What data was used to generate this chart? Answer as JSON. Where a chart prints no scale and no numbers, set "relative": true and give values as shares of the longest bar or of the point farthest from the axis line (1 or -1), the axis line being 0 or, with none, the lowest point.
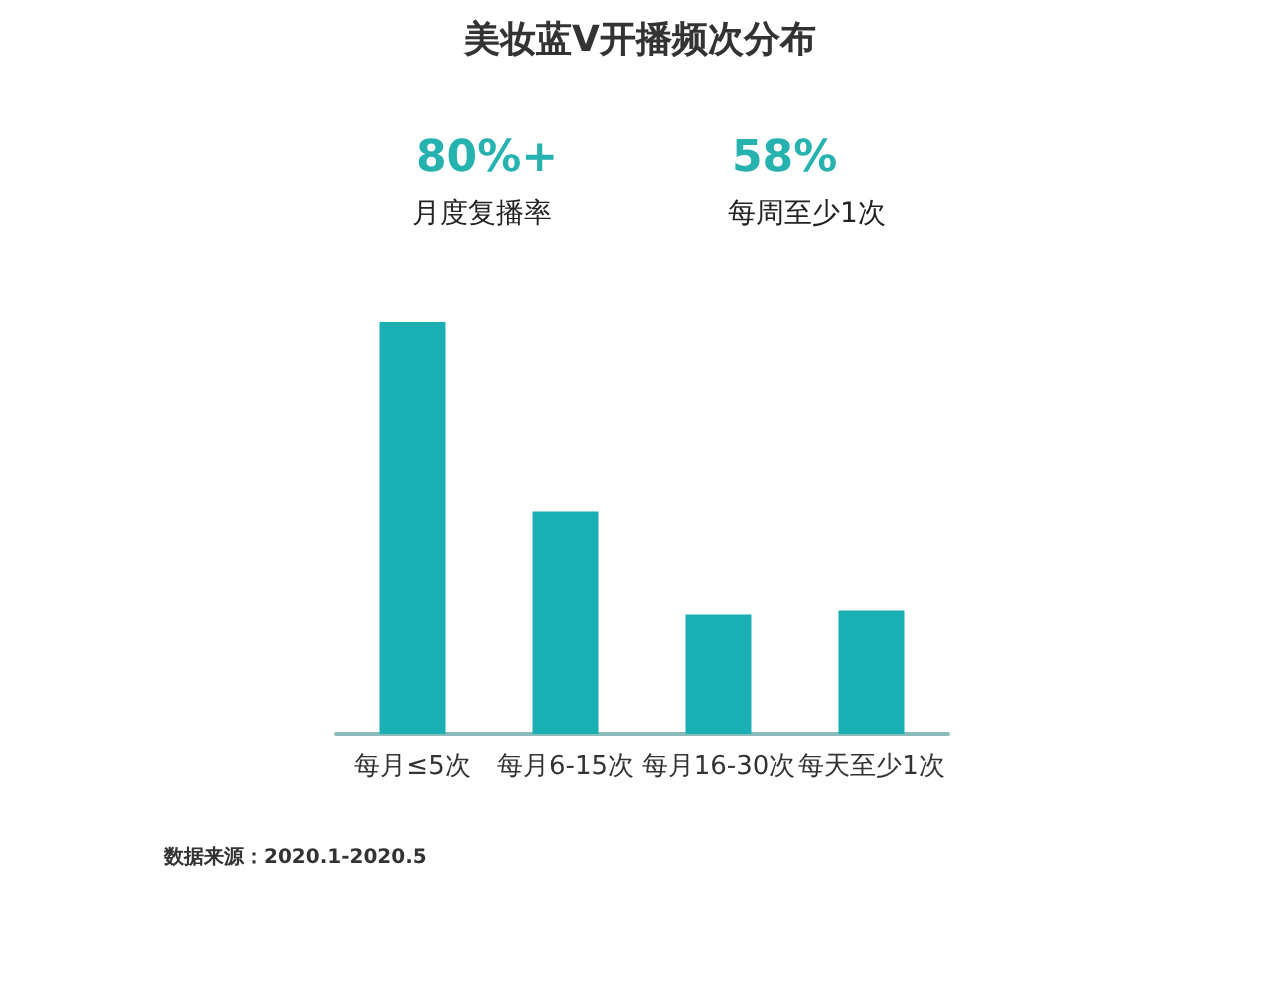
{
  "chart_data": {
    "type": "bar",
    "title": "美妆蓝V开播频次分布",
    "categories": [
      "每月≤5次",
      "每月6-15次",
      "每月16-30次",
      "每天至少1次"
    ],
    "values": [
      1,
      0.54,
      0.29,
      0.3
    ],
    "color": "#1aafb3",
    "relative": true,
    "annotations": [
      "80%+",
      "月度复播率",
      "58%",
      "每周至少1次",
      "数据来源：2020.1-2020.5"
    ]
  }
}
